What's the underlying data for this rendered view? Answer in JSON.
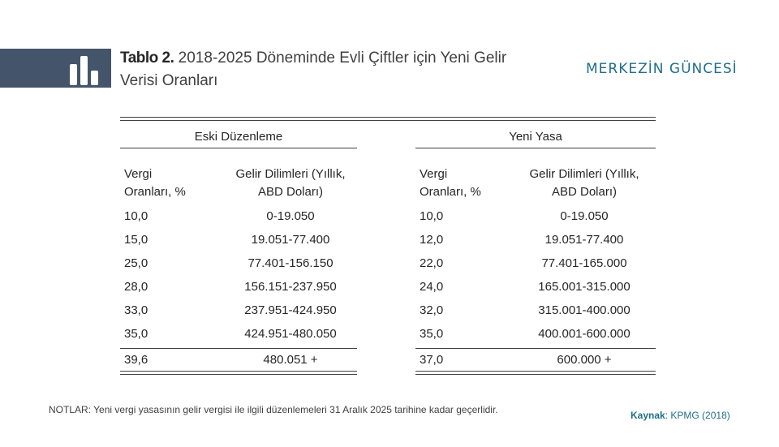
{
  "title": {
    "label": "Tablo 2.",
    "line1": "2018-2025 Döneminde Evli Çiftler için Yeni Gelir",
    "line2": "Verisi Oranları"
  },
  "brand": "MERKEZİN GÜNCESİ",
  "icon": "bar-chart-icon",
  "colors": {
    "band": "#44546a",
    "brand": "#1f6f8b"
  },
  "table": {
    "groups": [
      "Eski Düzenleme",
      "Yeni Yasa"
    ],
    "col_rate_l1": "Vergi",
    "col_rate_l2": "Oranları, %",
    "col_range_l1": "Gelir Dilimleri (Yıllık,",
    "col_range_l2": "ABD Doları)",
    "rows": [
      {
        "old_rate": "10,0",
        "old_range": "0-19.050",
        "new_rate": "10,0",
        "new_range": "0-19.050"
      },
      {
        "old_rate": "15,0",
        "old_range": "19.051-77.400",
        "new_rate": "12,0",
        "new_range": "19.051-77.400"
      },
      {
        "old_rate": "25,0",
        "old_range": "77.401-156.150",
        "new_rate": "22,0",
        "new_range": "77.401-165.000"
      },
      {
        "old_rate": "28,0",
        "old_range": "156.151-237.950",
        "new_rate": "24,0",
        "new_range": "165.001-315.000"
      },
      {
        "old_rate": "33,0",
        "old_range": "237.951-424.950",
        "new_rate": "32,0",
        "new_range": "315.001-400.000"
      },
      {
        "old_rate": "35,0",
        "old_range": "424.951-480.050",
        "new_rate": "35,0",
        "new_range": "400.001-600.000"
      },
      {
        "old_rate": "39,6",
        "old_range": "480.051 +",
        "new_rate": "37,0",
        "new_range": "600.000 +"
      }
    ]
  },
  "notes": "NOTLAR: Yeni vergi yasasının gelir vergisi ile ilgili düzenlemeleri 31 Aralık 2025 tarihine kadar geçerlidir.",
  "source": {
    "label": "Kaynak",
    "sep": ": ",
    "value": "KPMG (2018)"
  }
}
